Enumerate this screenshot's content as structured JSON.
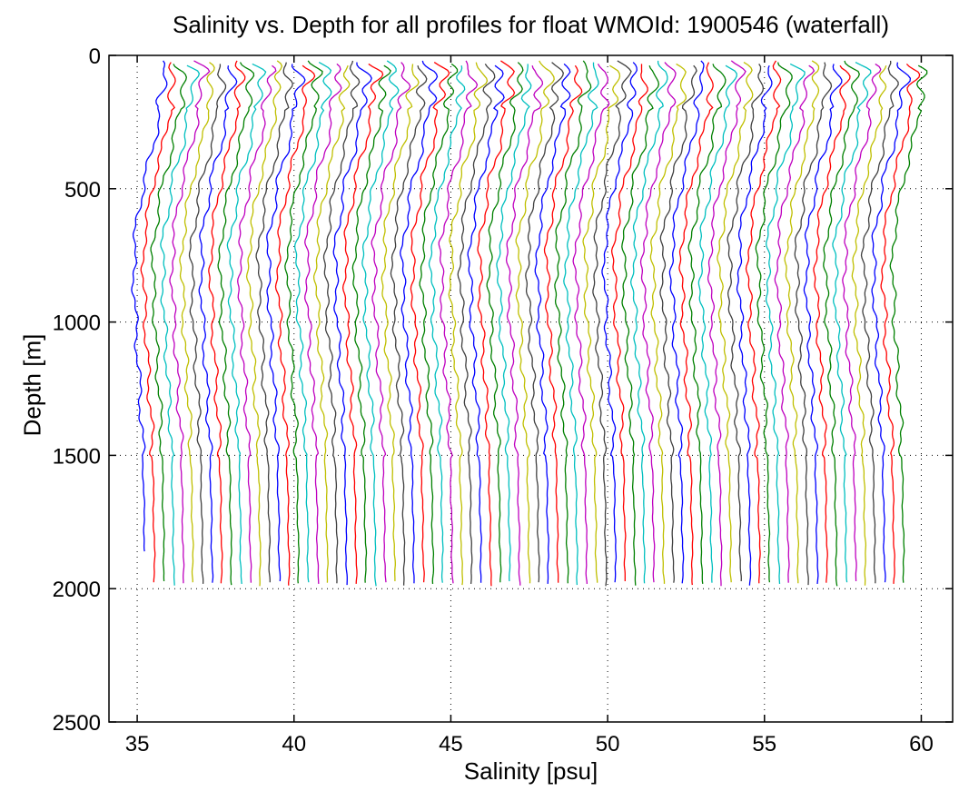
{
  "chart_data": {
    "type": "line",
    "title": "Salinity vs. Depth for all profiles for float WMOId: 1900546 (waterfall)",
    "xlabel": "Salinity [psu]",
    "ylabel": "Depth [m]",
    "xlim": [
      34.1,
      61
    ],
    "ylim": [
      0,
      2500
    ],
    "y_reversed": true,
    "xticks": [
      35,
      40,
      45,
      50,
      55,
      60
    ],
    "yticks": [
      0,
      500,
      1000,
      1500,
      2000,
      2500
    ],
    "grid": "dotted",
    "legend": "none",
    "series_colors": [
      "#0000ff",
      "#ff0000",
      "#008000",
      "#00bfbf",
      "#bf00bf",
      "#bfbf00",
      "#404040"
    ],
    "waterfall": {
      "profile_count": 80,
      "first_profile_deep_salinity": 35.25,
      "last_profile_deep_salinity": 59.45,
      "profile_spacing_psu": 0.3063,
      "first_profile_max_depth": 1860,
      "typical_max_depth": 1990,
      "profile_shape": {
        "depth": [
          0,
          20,
          60,
          110,
          180,
          260,
          350,
          450,
          550,
          700,
          850,
          1000,
          1200,
          1400,
          1600,
          1800,
          2000
        ],
        "salinity_offset": [
          0.7,
          0.75,
          1.0,
          0.95,
          0.85,
          0.75,
          0.6,
          0.35,
          0.2,
          0.0,
          0.0,
          0.05,
          0.15,
          0.25,
          0.3,
          0.33,
          0.35
        ]
      }
    }
  }
}
